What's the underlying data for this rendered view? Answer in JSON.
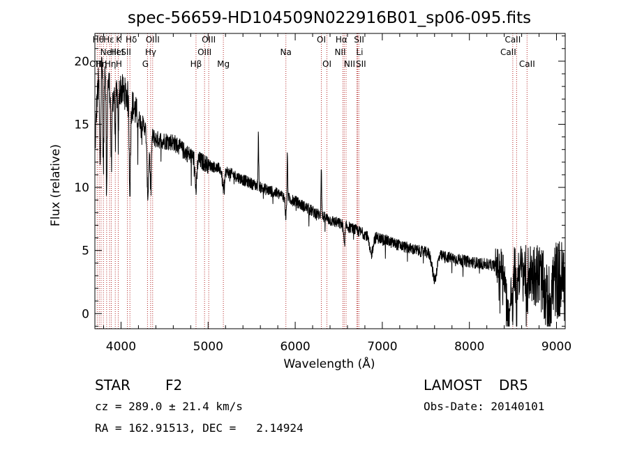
{
  "chart_data": {
    "type": "line",
    "title": "spec-56659-HD104509N022916B01_sp06-095.fits",
    "xlabel": "Wavelength (Å)",
    "ylabel": "Flux (relative)",
    "xlim": [
      3700,
      9100
    ],
    "ylim": [
      -1.2,
      22.2
    ],
    "xticks": [
      4000,
      5000,
      6000,
      7000,
      8000,
      9000
    ],
    "yticks": [
      0,
      5,
      10,
      15,
      20
    ],
    "grid": false,
    "series_color": "#000000",
    "line_color": "#b22222",
    "continuum": [
      [
        3700,
        13.0
      ],
      [
        3750,
        20.0
      ],
      [
        3800,
        20.5
      ],
      [
        3850,
        18.5
      ],
      [
        3900,
        17.2
      ],
      [
        4000,
        17.8
      ],
      [
        4100,
        17.0
      ],
      [
        4200,
        15.5
      ],
      [
        4300,
        14.5
      ],
      [
        4400,
        13.8
      ],
      [
        4500,
        13.7
      ],
      [
        4600,
        13.6
      ],
      [
        4700,
        13.0
      ],
      [
        4800,
        12.5
      ],
      [
        5000,
        11.8
      ],
      [
        5200,
        11.3
      ],
      [
        5400,
        10.6
      ],
      [
        5600,
        10.0
      ],
      [
        5800,
        9.5
      ],
      [
        6000,
        8.9
      ],
      [
        6200,
        8.1
      ],
      [
        6400,
        7.4
      ],
      [
        6600,
        6.9
      ],
      [
        6800,
        6.3
      ],
      [
        7000,
        5.9
      ],
      [
        7200,
        5.4
      ],
      [
        7400,
        5.0
      ],
      [
        7600,
        4.7
      ],
      [
        7800,
        4.4
      ],
      [
        8000,
        4.1
      ],
      [
        8200,
        3.9
      ],
      [
        8400,
        3.7
      ],
      [
        8600,
        3.4
      ],
      [
        8800,
        3.1
      ],
      [
        9000,
        2.8
      ],
      [
        9100,
        2.5
      ]
    ],
    "features": [
      [
        3720,
        -0.5,
        6
      ],
      [
        3760,
        8.0,
        8
      ],
      [
        3798,
        9.0,
        6
      ],
      [
        3835,
        9.5,
        6
      ],
      [
        3889,
        6.0,
        6
      ],
      [
        3934,
        3.5,
        5
      ],
      [
        3968,
        4.0,
        5
      ],
      [
        4102,
        7.0,
        8
      ],
      [
        4308,
        5.0,
        10
      ],
      [
        4340,
        4.0,
        8
      ],
      [
        4861,
        2.5,
        10
      ],
      [
        5175,
        1.5,
        12
      ],
      [
        5577,
        -4.0,
        4
      ],
      [
        5893,
        1.5,
        8
      ],
      [
        5910,
        -3.5,
        4
      ],
      [
        6300,
        -4.0,
        4
      ],
      [
        6563,
        1.5,
        8
      ],
      [
        6870,
        1.5,
        20
      ],
      [
        7600,
        2.0,
        25
      ],
      [
        8450,
        4.0,
        25
      ],
      [
        8498,
        3.0,
        6
      ],
      [
        8542,
        4.0,
        6
      ],
      [
        8662,
        3.0,
        6
      ],
      [
        8900,
        2.0,
        40
      ]
    ],
    "lines": [
      {
        "wl": 3727,
        "label": "OII",
        "row": 2,
        "off": -3
      },
      {
        "wl": 3750,
        "label": "Hη",
        "row": 2,
        "off": 3
      },
      {
        "wl": 3771,
        "label": "Hθ",
        "row": 0,
        "off": -4
      },
      {
        "wl": 3798,
        "label": "Hη",
        "row": 2,
        "off": 10
      },
      {
        "wl": 3835,
        "label": "Hε",
        "row": 0,
        "off": 3
      },
      {
        "wl": 3869,
        "label": "NeIII",
        "row": 1,
        "off": 0
      },
      {
        "wl": 3889,
        "label": "HeI",
        "row": 1,
        "off": 8
      },
      {
        "wl": 3934,
        "label": "K",
        "row": 0,
        "off": 5
      },
      {
        "wl": 3968,
        "label": "H",
        "row": 2,
        "off": 1
      },
      {
        "wl": 4073,
        "label": "SII",
        "row": 1,
        "off": -2
      },
      {
        "wl": 4102,
        "label": "Hδ",
        "row": 0,
        "off": 2
      },
      {
        "wl": 4304,
        "label": "G",
        "row": 2,
        "off": -3
      },
      {
        "wl": 4340,
        "label": "Hγ",
        "row": 1,
        "off": 0
      },
      {
        "wl": 4363,
        "label": "OIII",
        "row": 0,
        "off": 0
      },
      {
        "wl": 4861,
        "label": "Hβ",
        "row": 2,
        "off": 0
      },
      {
        "wl": 4959,
        "label": "OIII",
        "row": 1,
        "off": 0
      },
      {
        "wl": 5007,
        "label": "OIII",
        "row": 0,
        "off": 0
      },
      {
        "wl": 5175,
        "label": "Mg",
        "row": 2,
        "off": 0
      },
      {
        "wl": 5893,
        "label": "Na",
        "row": 1,
        "off": 0
      },
      {
        "wl": 6300,
        "label": "OI",
        "row": 0,
        "off": 0
      },
      {
        "wl": 6364,
        "label": "OI",
        "row": 2,
        "off": 0
      },
      {
        "wl": 6548,
        "label": "NII",
        "row": 1,
        "off": -4
      },
      {
        "wl": 6563,
        "label": "Hα",
        "row": 0,
        "off": -4
      },
      {
        "wl": 6584,
        "label": "NII",
        "row": 2,
        "off": 5
      },
      {
        "wl": 6708,
        "label": "Li",
        "row": 1,
        "off": 4
      },
      {
        "wl": 6717,
        "label": "SII",
        "row": 0,
        "off": 2
      },
      {
        "wl": 6731,
        "label": "SII",
        "row": 2,
        "off": 3
      },
      {
        "wl": 8498,
        "label": "CaII",
        "row": 0,
        "off": 0
      },
      {
        "wl": 8542,
        "label": "CaII",
        "row": 1,
        "off": -12
      },
      {
        "wl": 8662,
        "label": "CaII",
        "row": 2,
        "off": 0
      }
    ]
  },
  "info": {
    "object_class": "STAR",
    "subclass": "F2",
    "survey": "LAMOST",
    "release": "DR5",
    "cz": "cz = 289.0 ± 21.4 km/s",
    "obs_date": "Obs-Date: 20140101",
    "coords": "RA = 162.91513, DEC =   2.14924"
  }
}
